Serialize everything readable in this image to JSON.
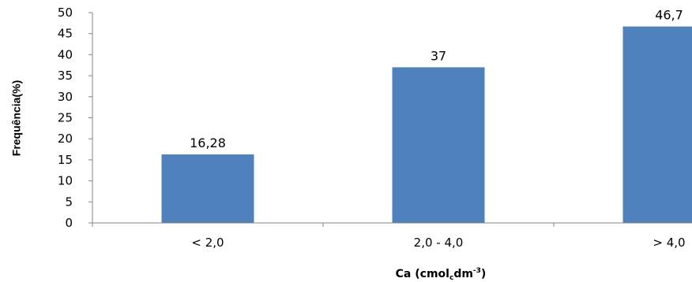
{
  "chart_data": {
    "type": "bar",
    "title": "",
    "ylabel": "Frequência(%)",
    "xlabel": {
      "prefix": "Ca (cmol",
      "subscript": "c",
      "middle": "dm",
      "superscript": "-3",
      "suffix": ")"
    },
    "categories": [
      "< 2,0",
      "2,0 - 4,0",
      "> 4,0"
    ],
    "values": [
      16.28,
      37,
      46.7
    ],
    "data_labels": [
      "16,28",
      "37",
      "46,7"
    ],
    "ylim": [
      0,
      50
    ],
    "yticks": [
      0,
      5,
      10,
      15,
      20,
      25,
      30,
      35,
      40,
      45,
      50
    ],
    "bar_color": "#4f81bd",
    "grid": false,
    "legend": "none"
  }
}
